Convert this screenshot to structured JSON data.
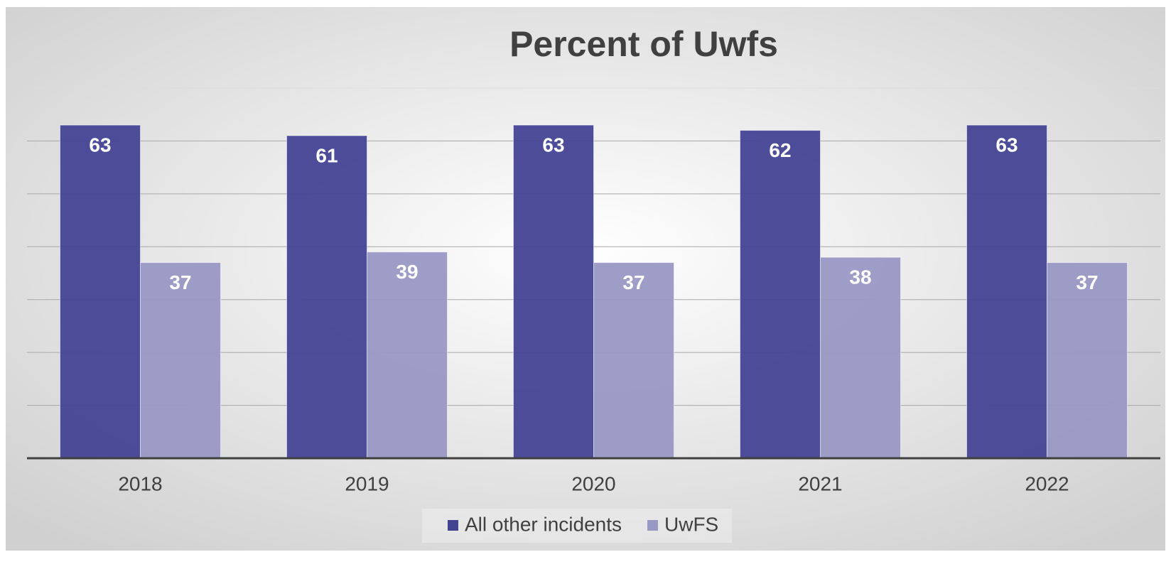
{
  "chart_data": {
    "type": "bar",
    "title": "Percent of Uwfs",
    "categories": [
      "2018",
      "2019",
      "2020",
      "2021",
      "2022"
    ],
    "series": [
      {
        "name": "All other incidents",
        "color": "#434393",
        "values": [
          63,
          61,
          63,
          62,
          63
        ]
      },
      {
        "name": "UwFS",
        "color": "#9898c4",
        "values": [
          37,
          39,
          37,
          38,
          37
        ]
      }
    ],
    "ylim": [
      0,
      70
    ],
    "yticks": [
      0,
      10,
      20,
      30,
      40,
      50,
      60,
      70
    ],
    "grid": true,
    "legend": "bottom"
  }
}
